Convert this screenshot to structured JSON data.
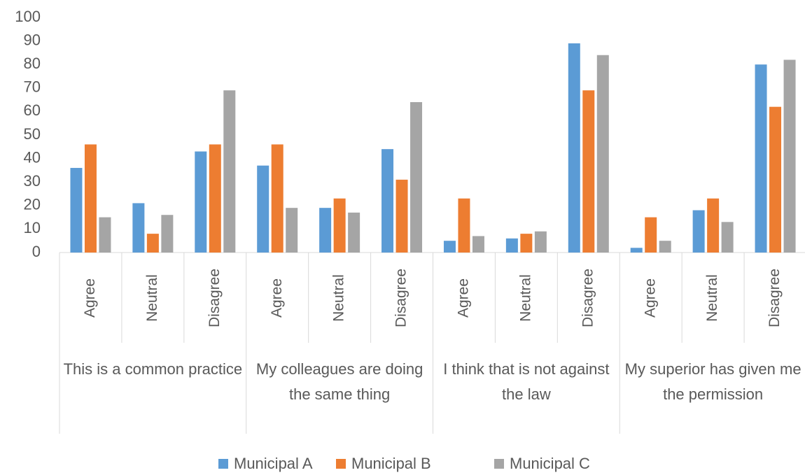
{
  "chart_data": {
    "type": "bar",
    "categories": [
      "Agree",
      "Neutral",
      "Disagree",
      "Agree",
      "Neutral",
      "Disagree",
      "Agree",
      "Neutral",
      "Disagree",
      "Agree",
      "Neutral",
      "Disagree"
    ],
    "groups": [
      "This is a common practice",
      "My colleagues are doing the same thing",
      "I think that is not against the law",
      "My superior has given me the permission"
    ],
    "series": [
      {
        "name": "Municipal A",
        "color": "#5b9bd5",
        "values": [
          36,
          21,
          43,
          37,
          19,
          44,
          5,
          6,
          89,
          2,
          18,
          80
        ]
      },
      {
        "name": "Municipal B",
        "color": "#ed7d31",
        "values": [
          46,
          8,
          46,
          46,
          23,
          31,
          23,
          8,
          69,
          15,
          23,
          62
        ]
      },
      {
        "name": "Municipal C",
        "color": "#a5a5a5",
        "values": [
          15,
          16,
          69,
          19,
          17,
          64,
          7,
          9,
          84,
          5,
          13,
          82
        ]
      }
    ],
    "ylim": [
      0,
      100
    ],
    "yticks": [
      0,
      10,
      20,
      30,
      40,
      50,
      60,
      70,
      80,
      90,
      100
    ],
    "grid": false,
    "legend": "bottom"
  }
}
